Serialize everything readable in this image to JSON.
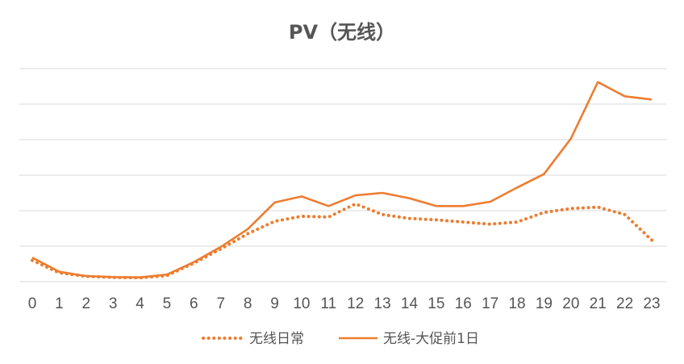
{
  "chart_data": {
    "type": "line",
    "title": "PV（无线）",
    "xlabel": "",
    "ylabel": "",
    "x": [
      "0",
      "1",
      "2",
      "3",
      "4",
      "5",
      "6",
      "7",
      "8",
      "9",
      "10",
      "11",
      "12",
      "13",
      "14",
      "15",
      "16",
      "17",
      "18",
      "19",
      "20",
      "21",
      "22",
      "23"
    ],
    "ylim": [
      0,
      6
    ],
    "y_tick_count": 6,
    "y_tick_labels_shown": false,
    "grid": true,
    "legend_position": "bottom",
    "series": [
      {
        "name": "无线日常",
        "style": "dotted",
        "color": "#ED7D31",
        "values": [
          0.6,
          0.25,
          0.15,
          0.12,
          0.11,
          0.17,
          0.52,
          0.92,
          1.35,
          1.7,
          1.84,
          1.82,
          2.19,
          1.89,
          1.78,
          1.74,
          1.68,
          1.62,
          1.68,
          1.95,
          2.06,
          2.1,
          1.89,
          1.17
        ]
      },
      {
        "name": "无线-大促前1日",
        "style": "solid",
        "color": "#ED7D31",
        "values": [
          0.68,
          0.28,
          0.16,
          0.13,
          0.12,
          0.2,
          0.55,
          0.98,
          1.48,
          2.23,
          2.4,
          2.13,
          2.43,
          2.5,
          2.35,
          2.13,
          2.13,
          2.25,
          2.65,
          3.03,
          4.03,
          5.62,
          5.22,
          5.13
        ]
      }
    ]
  }
}
